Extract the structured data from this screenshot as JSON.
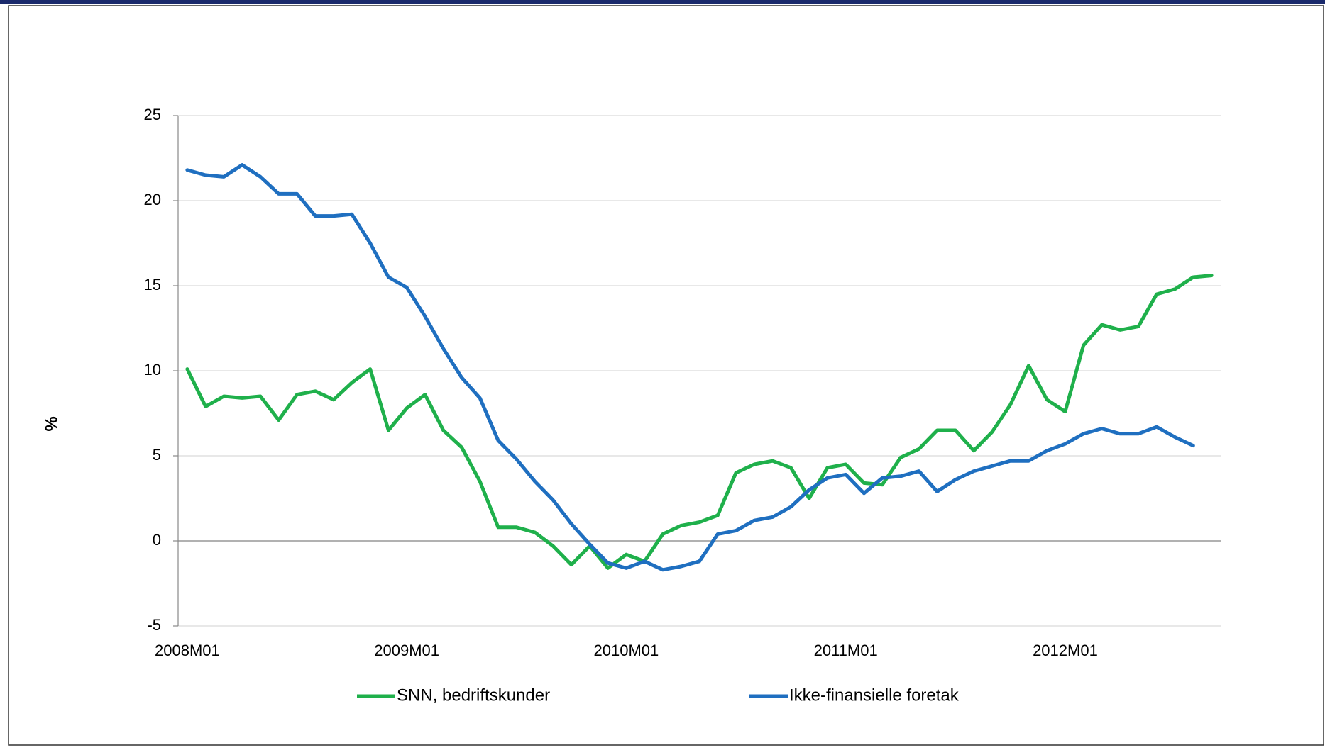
{
  "chart_data": {
    "type": "line",
    "y_label": "%",
    "categories": [
      "2008M01",
      null,
      null,
      null,
      null,
      null,
      null,
      null,
      null,
      null,
      null,
      null,
      "2009M01",
      null,
      null,
      null,
      null,
      null,
      null,
      null,
      null,
      null,
      null,
      null,
      "2010M01",
      null,
      null,
      null,
      null,
      null,
      null,
      null,
      null,
      null,
      null,
      null,
      "2011M01",
      null,
      null,
      null,
      null,
      null,
      null,
      null,
      null,
      null,
      null,
      null,
      "2012M01",
      null,
      null,
      null,
      null,
      null,
      null,
      null,
      null
    ],
    "series": [
      {
        "name": "SNN, bedriftskunder",
        "color": "#1fb04b",
        "values": [
          10.1,
          7.9,
          8.5,
          8.4,
          8.5,
          7.1,
          8.6,
          8.8,
          8.3,
          9.3,
          10.1,
          6.5,
          7.8,
          8.6,
          6.5,
          5.5,
          3.5,
          0.8,
          0.8,
          0.5,
          -0.3,
          -1.4,
          -0.3,
          -1.6,
          -0.8,
          -1.2,
          0.4,
          0.9,
          1.1,
          1.5,
          4.0,
          4.5,
          4.7,
          4.3,
          2.5,
          4.3,
          4.5,
          3.4,
          3.3,
          4.9,
          5.4,
          6.5,
          6.5,
          5.3,
          6.4,
          8.0,
          10.3,
          8.3,
          7.6,
          11.5,
          12.7,
          12.4,
          12.6,
          14.5,
          14.8,
          15.5,
          15.6
        ]
      },
      {
        "name": "Ikke-finansielle foretak",
        "color": "#1f6fc0",
        "values": [
          21.8,
          21.5,
          21.4,
          22.1,
          21.4,
          20.4,
          20.4,
          19.1,
          19.1,
          19.2,
          17.5,
          15.5,
          14.9,
          13.2,
          11.3,
          9.6,
          8.4,
          5.9,
          4.8,
          3.5,
          2.4,
          1.0,
          -0.2,
          -1.3,
          -1.6,
          -1.2,
          -1.7,
          -1.5,
          -1.2,
          0.4,
          0.6,
          1.2,
          1.4,
          2.0,
          3.0,
          3.7,
          3.9,
          2.8,
          3.7,
          3.8,
          4.1,
          2.9,
          3.6,
          4.1,
          4.4,
          4.7,
          4.7,
          5.3,
          5.7,
          6.3,
          6.6,
          6.3,
          6.3,
          6.7,
          6.1,
          5.6,
          null
        ]
      }
    ],
    "ylim": [
      -5,
      25
    ],
    "yticks": [
      -5,
      0,
      5,
      10,
      15,
      20,
      25
    ],
    "grid": true
  }
}
